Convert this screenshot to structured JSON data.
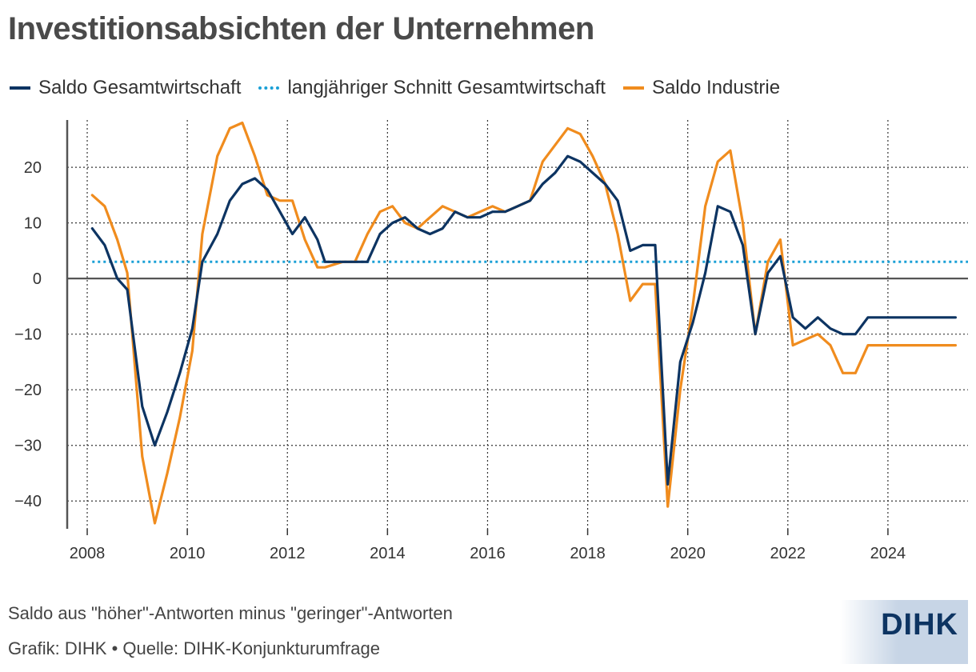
{
  "title": "Investitionsabsichten der Unternehmen",
  "footer": {
    "note": "Saldo aus \"höher\"-Antworten minus \"geringer\"-Antworten",
    "source": "Grafik: DIHK • Quelle: DIHK-Konjunkturumfrage",
    "logo": "DIHK"
  },
  "colors": {
    "gesamt": "#0d3462",
    "schnitt": "#1aa0d6",
    "industrie": "#f08c1e",
    "axis": "#555555",
    "grid": "#333333"
  },
  "chart_data": {
    "type": "line",
    "xlim": [
      2007.6,
      2025.6
    ],
    "ylim": [
      -45,
      28.5
    ],
    "x_ticks": [
      2008,
      2010,
      2012,
      2014,
      2016,
      2018,
      2020,
      2022,
      2024
    ],
    "x_tick_labels": [
      "2008",
      "2010",
      "2012",
      "2014",
      "2016",
      "2018",
      "2020",
      "2022",
      "2024"
    ],
    "y_ticks": [
      20,
      10,
      0,
      -10,
      -20,
      -30,
      -40
    ],
    "y_tick_labels": [
      "20",
      "10",
      "0",
      "−10",
      "−20",
      "−30",
      "−40"
    ],
    "grid": "dotted",
    "legend_position": "top-left",
    "x": [
      2008.1,
      2008.35,
      2008.6,
      2008.8,
      2009.1,
      2009.35,
      2009.6,
      2009.85,
      2010.1,
      2010.3,
      2010.6,
      2010.85,
      2011.1,
      2011.35,
      2011.6,
      2011.85,
      2012.1,
      2012.35,
      2012.6,
      2012.75,
      2013.1,
      2013.35,
      2013.6,
      2013.85,
      2014.1,
      2014.35,
      2014.6,
      2014.85,
      2015.1,
      2015.35,
      2015.6,
      2015.85,
      2016.1,
      2016.35,
      2016.6,
      2016.85,
      2017.1,
      2017.35,
      2017.6,
      2017.85,
      2018.1,
      2018.35,
      2018.6,
      2018.85,
      2019.1,
      2019.35,
      2019.6,
      2019.85,
      2020.1,
      2020.35,
      2020.6,
      2020.85,
      2021.1,
      2021.35,
      2021.6,
      2021.85,
      2022.1,
      2022.35,
      2022.6,
      2022.85,
      2023.1,
      2023.35,
      2023.6,
      2023.85,
      2024.1,
      2024.35,
      2024.6,
      2024.85,
      2025.1,
      2025.35
    ],
    "series": [
      {
        "name": "Saldo Gesamtwirtschaft",
        "style": "solid",
        "values": [
          9,
          6,
          0,
          -2,
          -23,
          -30,
          -24,
          -17,
          -9,
          3,
          8,
          14,
          17,
          18,
          16,
          12,
          8,
          11,
          7,
          3,
          3,
          3,
          3,
          8,
          10,
          11,
          9,
          8,
          9,
          12,
          11,
          11,
          12,
          12,
          13,
          14,
          17,
          19,
          22,
          21,
          19,
          17,
          14,
          5,
          6,
          6,
          -37,
          -15,
          -8,
          1,
          13,
          12,
          6,
          -10,
          1,
          4,
          -7,
          -9,
          -7,
          -9,
          -10,
          -10,
          -7,
          -7,
          -7,
          -7,
          -7,
          -7,
          -7,
          -7
        ]
      },
      {
        "name": "langjähriger Schnitt Gesamtwirtschaft",
        "style": "dotted",
        "constant": 3
      },
      {
        "name": "Saldo Industrie",
        "style": "solid",
        "values": [
          15,
          13,
          7,
          1,
          -32,
          -44,
          -35,
          -25,
          -13,
          8,
          22,
          27,
          28,
          22,
          15,
          14,
          14,
          7,
          2,
          2,
          3,
          3,
          8,
          12,
          13,
          10,
          9,
          11,
          13,
          12,
          11,
          12,
          13,
          12,
          13,
          14,
          21,
          24,
          27,
          26,
          22,
          17,
          8,
          -4,
          -1,
          -1,
          -41,
          -20,
          -5,
          13,
          21,
          23,
          10,
          -10,
          3,
          7,
          -12,
          -11,
          -10,
          -12,
          -17,
          -17,
          -12,
          -12,
          -12,
          -12,
          -12,
          -12,
          -12,
          -12
        ]
      }
    ]
  }
}
